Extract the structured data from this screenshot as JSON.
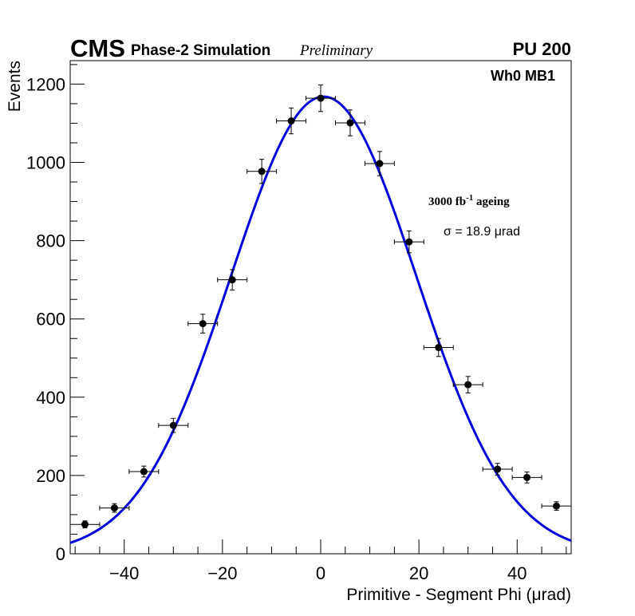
{
  "header": {
    "experiment": "CMS",
    "subtitle": "Phase-2 Simulation",
    "status": "Preliminary",
    "pileup": "PU 200"
  },
  "chart_data": {
    "type": "scatter",
    "title": "",
    "xlabel": "Primitive - Segment Phi (μrad)",
    "ylabel": "Events",
    "xlim": [
      -51,
      51
    ],
    "ylim": [
      0,
      1260
    ],
    "x_ticks": [
      -40,
      -20,
      0,
      20,
      40
    ],
    "x_tick_labels": [
      "−40",
      "−20",
      "0",
      "20",
      "40"
    ],
    "y_ticks": [
      0,
      200,
      400,
      600,
      800,
      1000,
      1200
    ],
    "y_tick_labels": [
      "0",
      "200",
      "400",
      "600",
      "800",
      "1000",
      "1200"
    ],
    "grid": false,
    "bin_half_width": 3,
    "annotations": {
      "region": "Wh0 MB1",
      "ageing_main": "3000 fb",
      "ageing_sup": "-1",
      "ageing_rest": " ageing",
      "sigma_label": "σ = 18.9 μrad"
    },
    "series": [
      {
        "name": "Simulation",
        "type": "errorbar",
        "color": "#000000",
        "x": [
          -48,
          -42,
          -36,
          -30,
          -24,
          -18,
          -12,
          -6,
          0,
          6,
          12,
          18,
          24,
          30,
          36,
          42,
          48
        ],
        "y": [
          75,
          117,
          210,
          328,
          588,
          700,
          977,
          1106,
          1164,
          1101,
          997,
          797,
          527,
          432,
          216,
          195,
          122
        ],
        "yerr": [
          9,
          11,
          14,
          18,
          24,
          26,
          31,
          33,
          34,
          33,
          31,
          28,
          23,
          21,
          15,
          14,
          11
        ]
      },
      {
        "name": "Gaussian fit",
        "type": "line",
        "color": "#0000dd",
        "mean": 0.6,
        "sigma": 18.9,
        "amplitude": 1168
      }
    ]
  }
}
